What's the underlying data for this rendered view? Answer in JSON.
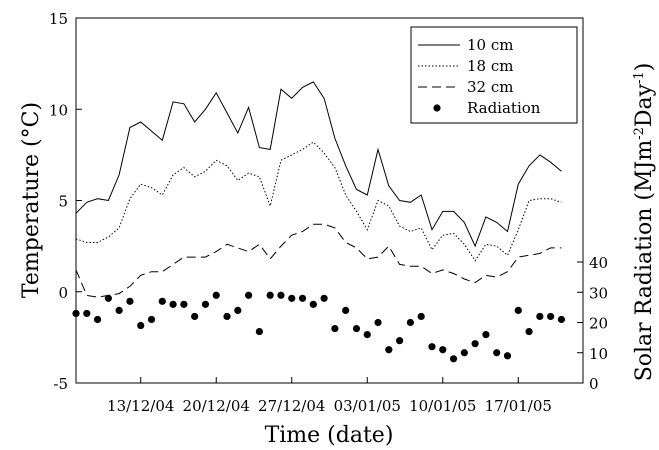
{
  "chart_data": {
    "type": "line",
    "xlabel": "Time (date)",
    "ylabel_left": "Temperature (°C)",
    "ylabel_right": "Solar Radiation (MJm-2Day-1)",
    "ylim_left": [
      -5,
      15
    ],
    "yticks_left": [
      -5,
      0,
      5,
      10,
      15
    ],
    "ylim_right_ticks": [
      0,
      10,
      20,
      30,
      40
    ],
    "xlim": [
      "2004-12-07",
      "2005-01-23"
    ],
    "x_ticks": [
      {
        "date": "2004-12-13",
        "label": "13/12/04"
      },
      {
        "date": "2004-12-20",
        "label": "20/12/04"
      },
      {
        "date": "2004-12-27",
        "label": "27/12/04"
      },
      {
        "date": "2005-01-03",
        "label": "03/01/05"
      },
      {
        "date": "2005-01-10",
        "label": "10/01/05"
      },
      {
        "date": "2005-01-17",
        "label": "17/01/05"
      }
    ],
    "legend_position": "top-right",
    "series": [
      {
        "name": "10 cm",
        "style": "solid",
        "axis": "left",
        "points": [
          [
            "2004-12-07",
            4.3
          ],
          [
            "2004-12-08",
            4.9
          ],
          [
            "2004-12-09",
            5.1
          ],
          [
            "2004-12-10",
            5.0
          ],
          [
            "2004-12-11",
            6.4
          ],
          [
            "2004-12-12",
            9.0
          ],
          [
            "2004-12-13",
            9.3
          ],
          [
            "2004-12-14",
            8.8
          ],
          [
            "2004-12-15",
            8.3
          ],
          [
            "2004-12-16",
            10.4
          ],
          [
            "2004-12-17",
            10.3
          ],
          [
            "2004-12-18",
            9.3
          ],
          [
            "2004-12-19",
            10.0
          ],
          [
            "2004-12-20",
            10.9
          ],
          [
            "2004-12-21",
            9.8
          ],
          [
            "2004-12-22",
            8.7
          ],
          [
            "2004-12-23",
            10.1
          ],
          [
            "2004-12-24",
            7.9
          ],
          [
            "2004-12-25",
            7.8
          ],
          [
            "2004-12-26",
            11.1
          ],
          [
            "2004-12-27",
            10.6
          ],
          [
            "2004-12-28",
            11.2
          ],
          [
            "2004-12-29",
            11.5
          ],
          [
            "2004-12-30",
            10.6
          ],
          [
            "2004-12-31",
            8.4
          ],
          [
            "2005-01-01",
            6.9
          ],
          [
            "2005-01-02",
            5.6
          ],
          [
            "2005-01-03",
            5.3
          ],
          [
            "2005-01-04",
            7.8
          ],
          [
            "2005-01-05",
            5.8
          ],
          [
            "2005-01-06",
            5.0
          ],
          [
            "2005-01-07",
            4.9
          ],
          [
            "2005-01-08",
            5.3
          ],
          [
            "2005-01-09",
            3.4
          ],
          [
            "2005-01-10",
            4.4
          ],
          [
            "2005-01-11",
            4.4
          ],
          [
            "2005-01-12",
            3.8
          ],
          [
            "2005-01-13",
            2.5
          ],
          [
            "2005-01-14",
            4.1
          ],
          [
            "2005-01-15",
            3.8
          ],
          [
            "2005-01-16",
            3.3
          ],
          [
            "2005-01-17",
            5.9
          ],
          [
            "2005-01-18",
            6.9
          ],
          [
            "2005-01-19",
            7.5
          ],
          [
            "2005-01-20",
            7.1
          ],
          [
            "2005-01-21",
            6.6
          ]
        ]
      },
      {
        "name": "18 cm",
        "style": "dotted",
        "axis": "left",
        "points": [
          [
            "2004-12-07",
            2.9
          ],
          [
            "2004-12-08",
            2.7
          ],
          [
            "2004-12-09",
            2.7
          ],
          [
            "2004-12-10",
            3.0
          ],
          [
            "2004-12-11",
            3.5
          ],
          [
            "2004-12-12",
            5.1
          ],
          [
            "2004-12-13",
            5.9
          ],
          [
            "2004-12-14",
            5.7
          ],
          [
            "2004-12-15",
            5.3
          ],
          [
            "2004-12-16",
            6.4
          ],
          [
            "2004-12-17",
            6.8
          ],
          [
            "2004-12-18",
            6.3
          ],
          [
            "2004-12-19",
            6.6
          ],
          [
            "2004-12-20",
            7.2
          ],
          [
            "2004-12-21",
            6.9
          ],
          [
            "2004-12-22",
            6.1
          ],
          [
            "2004-12-23",
            6.5
          ],
          [
            "2004-12-24",
            6.3
          ],
          [
            "2004-12-25",
            4.7
          ],
          [
            "2004-12-26",
            7.2
          ],
          [
            "2004-12-27",
            7.5
          ],
          [
            "2004-12-28",
            7.8
          ],
          [
            "2004-12-29",
            8.2
          ],
          [
            "2004-12-30",
            7.6
          ],
          [
            "2004-12-31",
            6.8
          ],
          [
            "2005-01-01",
            5.3
          ],
          [
            "2005-01-02",
            4.4
          ],
          [
            "2005-01-03",
            3.4
          ],
          [
            "2005-01-04",
            5.0
          ],
          [
            "2005-01-05",
            4.7
          ],
          [
            "2005-01-06",
            3.6
          ],
          [
            "2005-01-07",
            3.3
          ],
          [
            "2005-01-08",
            3.5
          ],
          [
            "2005-01-09",
            2.3
          ],
          [
            "2005-01-10",
            3.1
          ],
          [
            "2005-01-11",
            3.2
          ],
          [
            "2005-01-12",
            2.6
          ],
          [
            "2005-01-13",
            1.7
          ],
          [
            "2005-01-14",
            2.6
          ],
          [
            "2005-01-15",
            2.5
          ],
          [
            "2005-01-16",
            2.0
          ],
          [
            "2005-01-17",
            3.4
          ],
          [
            "2005-01-18",
            5.0
          ],
          [
            "2005-01-19",
            5.1
          ],
          [
            "2005-01-20",
            5.1
          ],
          [
            "2005-01-21",
            4.9
          ]
        ]
      },
      {
        "name": "32 cm",
        "style": "dashed",
        "axis": "left",
        "points": [
          [
            "2004-12-07",
            1.2
          ],
          [
            "2004-12-08",
            -0.2
          ],
          [
            "2004-12-09",
            -0.3
          ],
          [
            "2004-12-10",
            -0.2
          ],
          [
            "2004-12-11",
            -0.1
          ],
          [
            "2004-12-12",
            0.3
          ],
          [
            "2004-12-13",
            0.9
          ],
          [
            "2004-12-14",
            1.1
          ],
          [
            "2004-12-15",
            1.1
          ],
          [
            "2004-12-16",
            1.5
          ],
          [
            "2004-12-17",
            1.9
          ],
          [
            "2004-12-18",
            1.9
          ],
          [
            "2004-12-19",
            1.9
          ],
          [
            "2004-12-20",
            2.2
          ],
          [
            "2004-12-21",
            2.6
          ],
          [
            "2004-12-22",
            2.4
          ],
          [
            "2004-12-23",
            2.2
          ],
          [
            "2004-12-24",
            2.6
          ],
          [
            "2004-12-25",
            1.8
          ],
          [
            "2004-12-26",
            2.5
          ],
          [
            "2004-12-27",
            3.1
          ],
          [
            "2004-12-28",
            3.3
          ],
          [
            "2004-12-29",
            3.7
          ],
          [
            "2004-12-30",
            3.7
          ],
          [
            "2004-12-31",
            3.5
          ],
          [
            "2005-01-01",
            2.7
          ],
          [
            "2005-01-02",
            2.4
          ],
          [
            "2005-01-03",
            1.8
          ],
          [
            "2005-01-04",
            1.9
          ],
          [
            "2005-01-05",
            2.5
          ],
          [
            "2005-01-06",
            1.5
          ],
          [
            "2005-01-07",
            1.4
          ],
          [
            "2005-01-08",
            1.4
          ],
          [
            "2005-01-09",
            1.0
          ],
          [
            "2005-01-10",
            1.2
          ],
          [
            "2005-01-11",
            1.0
          ],
          [
            "2005-01-12",
            0.7
          ],
          [
            "2005-01-13",
            0.5
          ],
          [
            "2005-01-14",
            0.9
          ],
          [
            "2005-01-15",
            0.8
          ],
          [
            "2005-01-16",
            1.1
          ],
          [
            "2005-01-17",
            1.9
          ],
          [
            "2005-01-18",
            2.0
          ],
          [
            "2005-01-19",
            2.1
          ],
          [
            "2005-01-20",
            2.4
          ],
          [
            "2005-01-21",
            2.4
          ]
        ]
      },
      {
        "name": "Radiation",
        "style": "markers",
        "axis": "right",
        "points": [
          [
            "2004-12-07",
            23
          ],
          [
            "2004-12-08",
            23
          ],
          [
            "2004-12-09",
            21
          ],
          [
            "2004-12-10",
            28
          ],
          [
            "2004-12-11",
            24
          ],
          [
            "2004-12-12",
            27
          ],
          [
            "2004-12-13",
            19
          ],
          [
            "2004-12-14",
            21
          ],
          [
            "2004-12-15",
            27
          ],
          [
            "2004-12-16",
            26
          ],
          [
            "2004-12-17",
            26
          ],
          [
            "2004-12-18",
            22
          ],
          [
            "2004-12-19",
            26
          ],
          [
            "2004-12-20",
            29
          ],
          [
            "2004-12-21",
            22
          ],
          [
            "2004-12-22",
            24
          ],
          [
            "2004-12-23",
            29
          ],
          [
            "2004-12-24",
            17
          ],
          [
            "2004-12-25",
            29
          ],
          [
            "2004-12-26",
            29
          ],
          [
            "2004-12-27",
            28
          ],
          [
            "2004-12-28",
            28
          ],
          [
            "2004-12-29",
            26
          ],
          [
            "2004-12-30",
            28
          ],
          [
            "2004-12-31",
            18
          ],
          [
            "2005-01-01",
            24
          ],
          [
            "2005-01-02",
            18
          ],
          [
            "2005-01-03",
            16
          ],
          [
            "2005-01-04",
            20
          ],
          [
            "2005-01-05",
            11
          ],
          [
            "2005-01-06",
            14
          ],
          [
            "2005-01-07",
            20
          ],
          [
            "2005-01-08",
            22
          ],
          [
            "2005-01-09",
            12
          ],
          [
            "2005-01-10",
            11
          ],
          [
            "2005-01-11",
            8
          ],
          [
            "2005-01-12",
            10
          ],
          [
            "2005-01-13",
            13
          ],
          [
            "2005-01-14",
            16
          ],
          [
            "2005-01-15",
            10
          ],
          [
            "2005-01-16",
            9
          ],
          [
            "2005-01-17",
            24
          ],
          [
            "2005-01-18",
            17
          ],
          [
            "2005-01-19",
            22
          ],
          [
            "2005-01-20",
            22
          ],
          [
            "2005-01-21",
            21
          ]
        ]
      }
    ]
  }
}
